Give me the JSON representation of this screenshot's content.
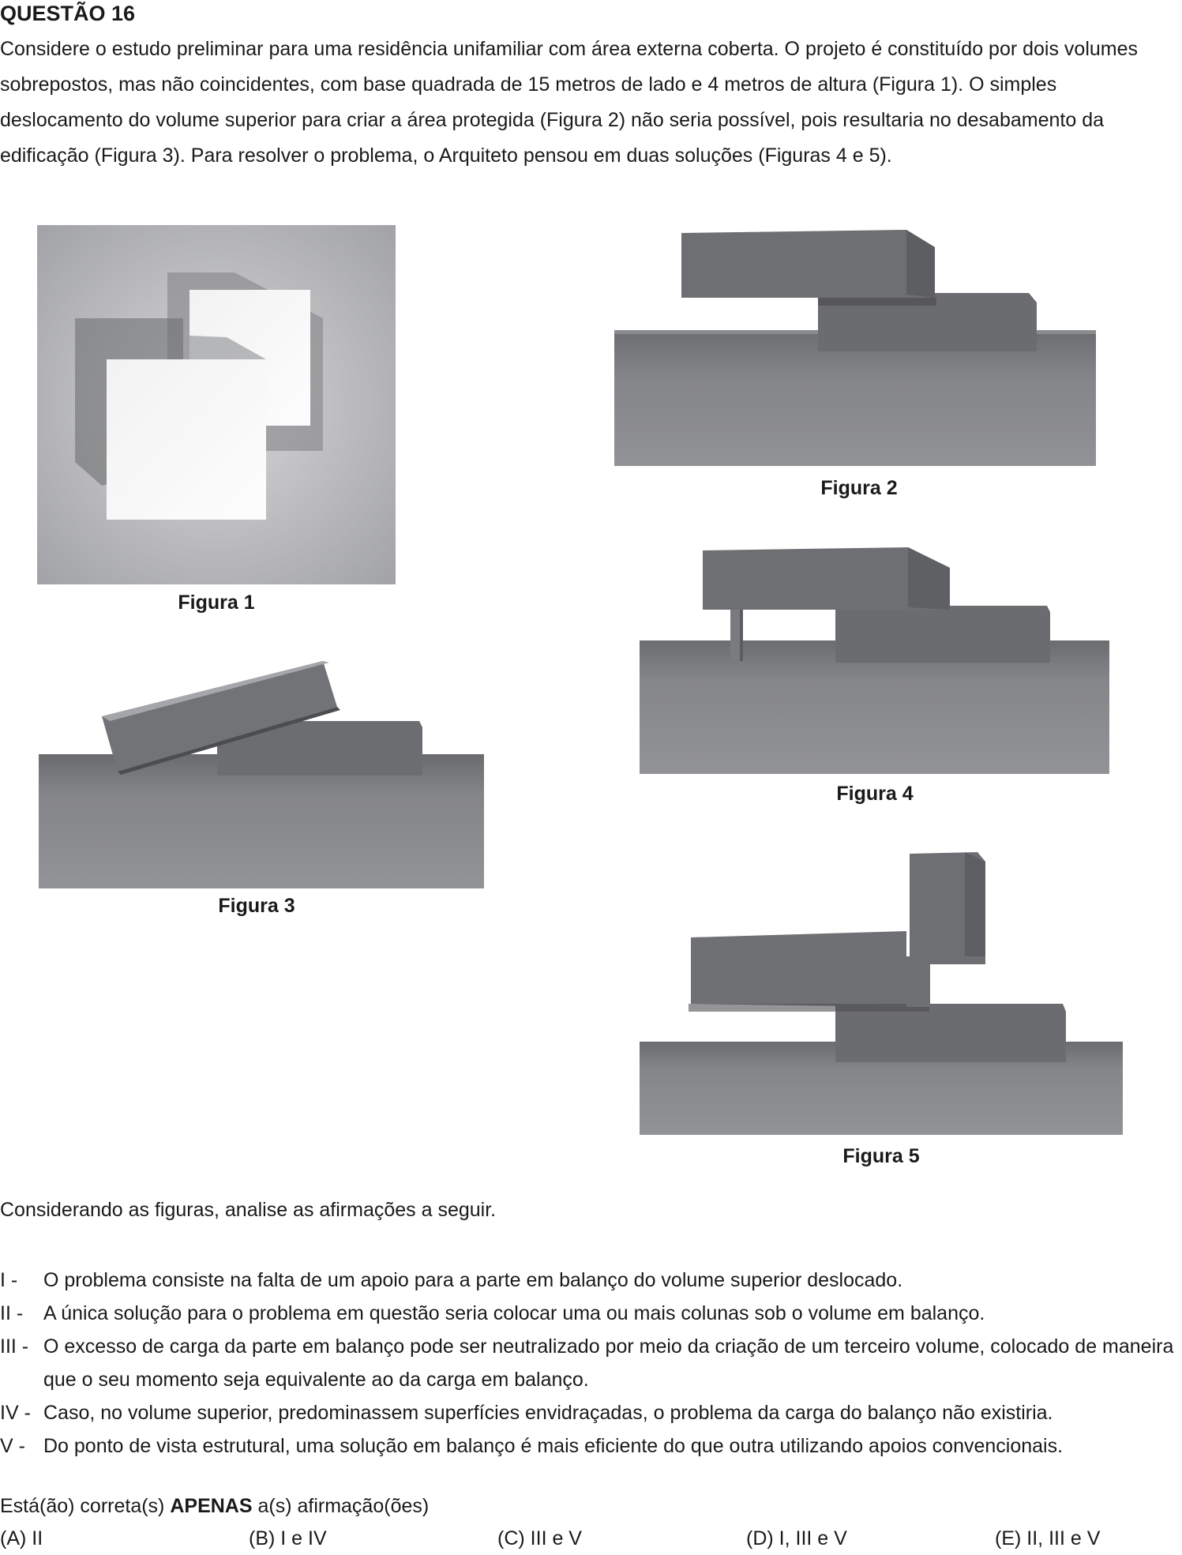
{
  "question": {
    "title": "QUESTÃO 16",
    "intro": "Considere o estudo preliminar para uma residência unifamiliar com área externa coberta. O projeto é constituído por dois volumes sobrepostos, mas não coincidentes, com base quadrada de 15 metros de lado e 4 metros de altura (Figura 1). O simples deslocamento do volume superior para criar a área protegida (Figura 2) não seria possível, pois resultaria no desabamento da edificação (Figura 3). Para resolver o problema, o Arquiteto pensou em duas soluções (Figuras 4 e 5)."
  },
  "figures": {
    "fig1": "Figura 1",
    "fig2": "Figura 2",
    "fig3": "Figura 3",
    "fig4": "Figura 4",
    "fig5": "Figura 5"
  },
  "lead": "Considerando as figuras, analise as afirmações a seguir.",
  "statements": [
    {
      "num": "I  -",
      "text": "O problema consiste na falta de um apoio para a parte em balanço do volume superior deslocado."
    },
    {
      "num": "II  -",
      "text": "A única solução para o problema em questão seria colocar uma ou mais colunas sob o volume em balanço."
    },
    {
      "num": "III -",
      "text": "O excesso de carga da parte em balanço pode ser neutralizado por meio da criação de um terceiro volume, colocado de maneira que o seu momento seja equivalente ao da carga em balanço."
    },
    {
      "num": "IV -",
      "text": "Caso, no volume superior, predominassem superfícies envidraçadas, o problema da carga do balanço não existiria."
    },
    {
      "num": "V  -",
      "text": "Do ponto de vista estrutural, uma solução em balanço  é mais eficiente do que outra utilizando apoios convencionais."
    }
  ],
  "ask": {
    "prefix": "Está(ão) correta(s) ",
    "bold": "APENAS",
    "suffix": " a(s) afirmação(ões)"
  },
  "options": [
    {
      "letter": "(A)",
      "text": "II"
    },
    {
      "letter": "(B)",
      "text": "I e IV"
    },
    {
      "letter": "(C)",
      "text": "III e V"
    },
    {
      "letter": "(D)",
      "text": "I, III e V"
    },
    {
      "letter": "(E)",
      "text": "II, III e V"
    }
  ]
}
